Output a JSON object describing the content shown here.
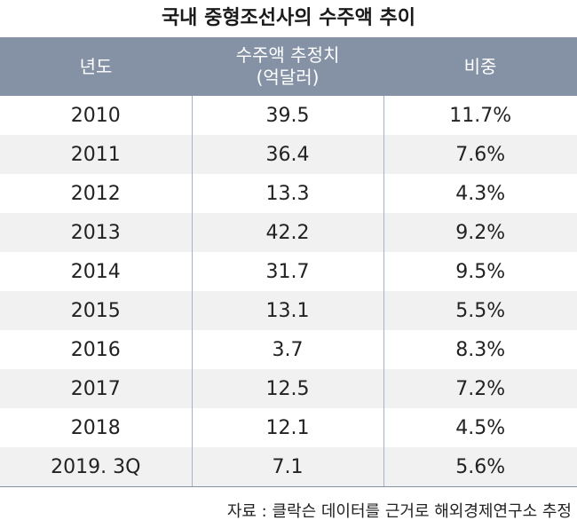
{
  "chart_data": {
    "type": "table",
    "title": "국내 중형조선사의 수주액 추이",
    "columns": [
      "년도",
      "수주액 추정치",
      "(억달러)",
      "비중"
    ],
    "rows": [
      {
        "year": "2010",
        "amount": "39.5",
        "share": "11.7%"
      },
      {
        "year": "2011",
        "amount": "36.4",
        "share": "7.6%"
      },
      {
        "year": "2012",
        "amount": "13.3",
        "share": "4.3%"
      },
      {
        "year": "2013",
        "amount": "42.2",
        "share": "9.2%"
      },
      {
        "year": "2014",
        "amount": "31.7",
        "share": "9.5%"
      },
      {
        "year": "2015",
        "amount": "13.1",
        "share": "5.5%"
      },
      {
        "year": "2016",
        "amount": "3.7",
        "share": "8.3%"
      },
      {
        "year": "2017",
        "amount": "12.5",
        "share": "7.2%"
      },
      {
        "year": "2018",
        "amount": "12.1",
        "share": "4.5%"
      },
      {
        "year": "2019. 3Q",
        "amount": "7.1",
        "share": "5.6%"
      }
    ],
    "source": "자료 : 클락슨 데이터를 근거로 해외경제연구소 추정"
  },
  "colors": {
    "header_bg": "#8592a6",
    "stripe_bg": "#f1f1f1",
    "divider": "#a4b1c9"
  }
}
